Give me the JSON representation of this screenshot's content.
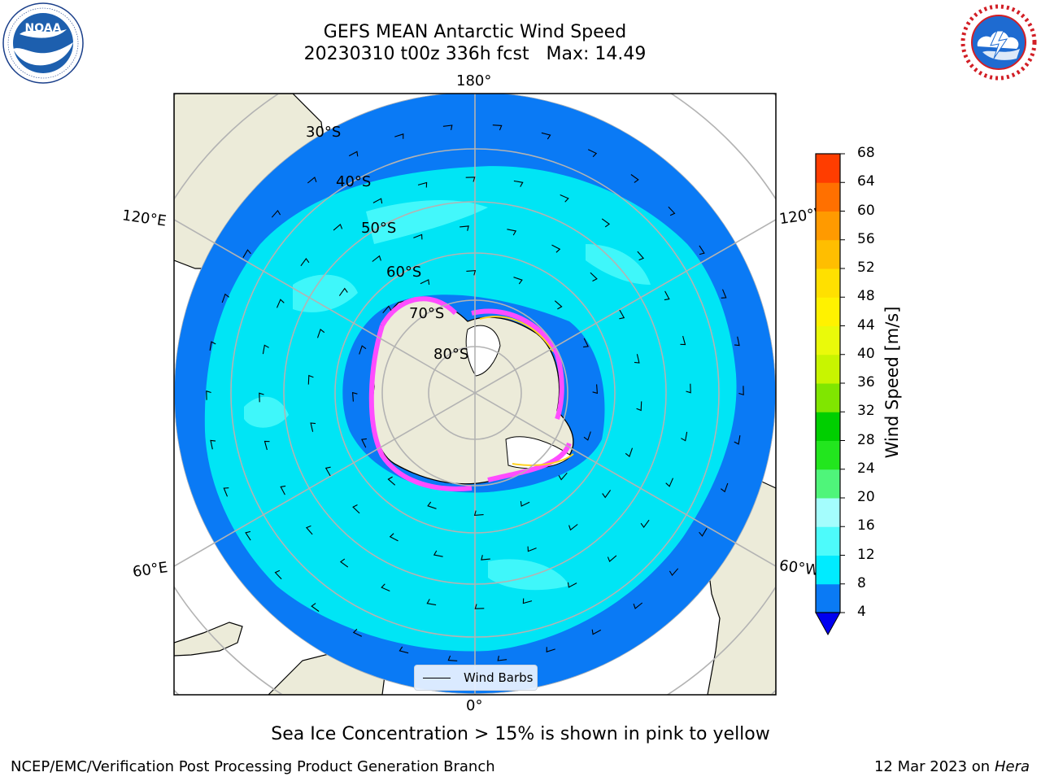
{
  "title": {
    "line1": "GEFS MEAN Antarctic Wind Speed",
    "line2": "20230310 t00z 336h fcst   Max: 14.49"
  },
  "logos": {
    "left": "noara-logo",
    "right": "nws-logo"
  },
  "map": {
    "longitude_labels": {
      "top": "180°",
      "bottom": "0°",
      "left_upper": "120°E",
      "left_lower": "60°E",
      "right_upper": "120°W",
      "right_lower": "60°W"
    },
    "latitude_labels": [
      "30°S",
      "40°S",
      "50°S",
      "60°S",
      "70°S",
      "80°S"
    ],
    "legend_label": "Wind Barbs",
    "colors": {
      "ocean_4_8": "#0a7af5",
      "ocean_8_12": "#00e5f5",
      "ocean_12_16": "#4ffbfb",
      "land": "#ecebd9",
      "ice_pink": "#ff4dff",
      "ice_yellow": "#ffd21f"
    }
  },
  "colorbar": {
    "title": "Wind Speed [m/s]",
    "ticks": [
      "4",
      "8",
      "12",
      "16",
      "20",
      "24",
      "28",
      "32",
      "36",
      "40",
      "44",
      "48",
      "52",
      "56",
      "60",
      "64",
      "68"
    ],
    "colors": [
      "#0a7af5",
      "#00ebff",
      "#4dfbfb",
      "#a4fdfd",
      "#4ff57a",
      "#22e61e",
      "#00cf00",
      "#80e600",
      "#c8f500",
      "#eafa0a",
      "#fff200",
      "#ffe000",
      "#ffbe00",
      "#ff9a00",
      "#ff7000",
      "#ff3d00",
      "#ff0000"
    ],
    "extend_color": "#0000f0"
  },
  "note": "Sea Ice Concentration > 15% is shown in pink to yellow",
  "footer": {
    "left": "NCEP/EMC/Verification Post Processing Product Generation Branch",
    "right_date": "12 Mar 2023 on",
    "right_machine": "Hera"
  }
}
